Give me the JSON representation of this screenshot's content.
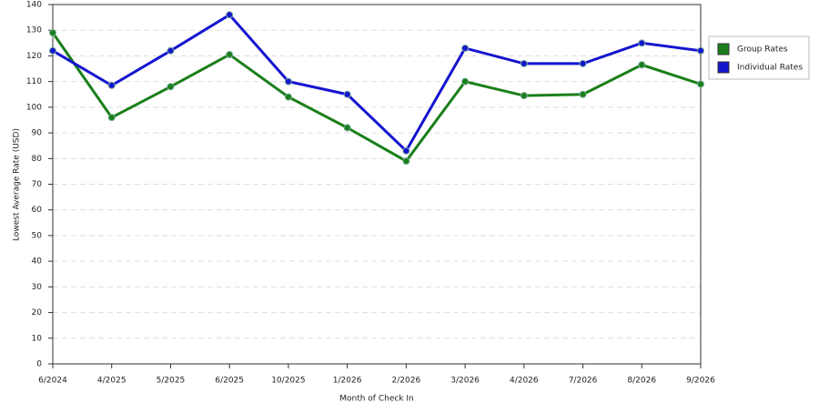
{
  "chart_data": {
    "type": "line",
    "x_label": "Month of Check In",
    "y_label": "Lowest Average Rate (USD)",
    "categories": [
      "6/2024",
      "4/2025",
      "5/2025",
      "6/2025",
      "10/2025",
      "1/2026",
      "2/2026",
      "3/2026",
      "4/2026",
      "7/2026",
      "8/2026",
      "9/2026"
    ],
    "series": [
      {
        "name": "Group Rates",
        "color": "#1a7f1a",
        "values": [
          129,
          96,
          108,
          120.5,
          104,
          92,
          79,
          110,
          104.5,
          105,
          116.5,
          109
        ]
      },
      {
        "name": "Individual Rates",
        "color": "#1515d0",
        "values": [
          122,
          108.5,
          122,
          136,
          110,
          105,
          83,
          123,
          117,
          117,
          125,
          122
        ]
      }
    ],
    "ylim": [
      0,
      140
    ],
    "yticks": [
      0,
      10,
      20,
      30,
      40,
      50,
      60,
      70,
      80,
      90,
      100,
      110,
      120,
      130,
      140
    ],
    "grid": true,
    "legend": "right"
  }
}
